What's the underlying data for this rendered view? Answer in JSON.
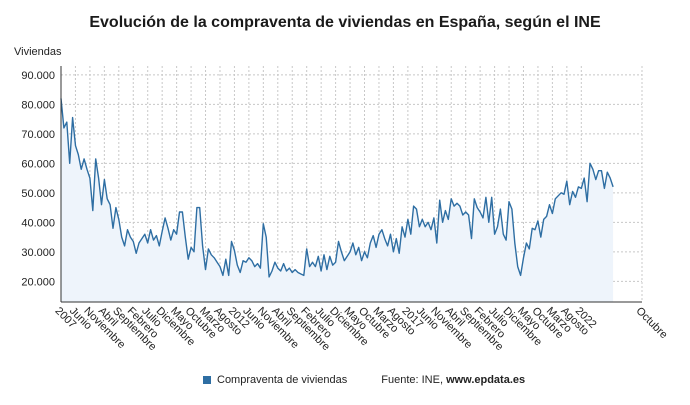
{
  "chart_data": {
    "type": "area",
    "title": "Evolución de la compraventa de viviendas en España, según el INE",
    "ylabel": "Viviendas",
    "ylim": [
      13000,
      93000
    ],
    "yticks": [
      20000,
      30000,
      40000,
      50000,
      60000,
      70000,
      80000,
      90000
    ],
    "ytick_labels": [
      "20.000",
      "30.000",
      "40.000",
      "50.000",
      "60.000",
      "70.000",
      "80.000",
      "90.000"
    ],
    "x_start": "2007-01",
    "x_end": "2023-10",
    "xtick_labels": [
      {
        "date": "2007-01",
        "label": "2007"
      },
      {
        "date": "2007-06",
        "label": "Junio"
      },
      {
        "date": "2007-11",
        "label": "Noviembre"
      },
      {
        "date": "2008-04",
        "label": "Abril"
      },
      {
        "date": "2008-09",
        "label": "Septiembre"
      },
      {
        "date": "2009-02",
        "label": "Febrero"
      },
      {
        "date": "2009-07",
        "label": "Julio"
      },
      {
        "date": "2009-12",
        "label": "Diciembre"
      },
      {
        "date": "2010-05",
        "label": "Mayo"
      },
      {
        "date": "2010-10",
        "label": "Octubre"
      },
      {
        "date": "2011-03",
        "label": "Marzo"
      },
      {
        "date": "2011-08",
        "label": "Agosto"
      },
      {
        "date": "2012-01",
        "label": "2012"
      },
      {
        "date": "2012-06",
        "label": "Junio"
      },
      {
        "date": "2012-11",
        "label": "Noviembre"
      },
      {
        "date": "2013-04",
        "label": "Abril"
      },
      {
        "date": "2013-09",
        "label": "Septiembre"
      },
      {
        "date": "2014-02",
        "label": "Febrero"
      },
      {
        "date": "2014-07",
        "label": "Julio"
      },
      {
        "date": "2014-12",
        "label": "Diciembre"
      },
      {
        "date": "2015-05",
        "label": "Mayo"
      },
      {
        "date": "2015-10",
        "label": "Octubre"
      },
      {
        "date": "2016-03",
        "label": "Marzo"
      },
      {
        "date": "2016-08",
        "label": "Agosto"
      },
      {
        "date": "2017-01",
        "label": "2017"
      },
      {
        "date": "2017-06",
        "label": "Junio"
      },
      {
        "date": "2017-11",
        "label": "Noviembre"
      },
      {
        "date": "2018-04",
        "label": "Abril"
      },
      {
        "date": "2018-09",
        "label": "Septiembre"
      },
      {
        "date": "2019-02",
        "label": "Febrero"
      },
      {
        "date": "2019-07",
        "label": "Julio"
      },
      {
        "date": "2019-12",
        "label": "Diciembre"
      },
      {
        "date": "2020-05",
        "label": "Mayo"
      },
      {
        "date": "2020-10",
        "label": "Octubre"
      },
      {
        "date": "2021-03",
        "label": "Marzo"
      },
      {
        "date": "2021-08",
        "label": "Agosto"
      },
      {
        "date": "2022-01",
        "label": "2022"
      },
      {
        "date": "2023-10",
        "label": "Octubre"
      }
    ],
    "series": [
      {
        "name": "Compraventa de viviendas",
        "color": "#2e6ea3",
        "fill": "#eef4fb",
        "values": [
          82000,
          72000,
          74000,
          60000,
          75500,
          66000,
          63000,
          58000,
          61500,
          58000,
          55000,
          44000,
          61500,
          55000,
          46000,
          54500,
          48000,
          46000,
          38000,
          45000,
          41000,
          35000,
          32000,
          37500,
          35000,
          33500,
          29500,
          33000,
          34500,
          36000,
          33000,
          37500,
          34000,
          35500,
          32000,
          37000,
          41500,
          38000,
          34000,
          37500,
          36000,
          43500,
          43500,
          35000,
          27500,
          31500,
          30000,
          45000,
          45000,
          32000,
          24000,
          31000,
          29000,
          28000,
          26500,
          25000,
          22000,
          27500,
          22000,
          33500,
          30500,
          25500,
          23000,
          27000,
          26500,
          28000,
          27000,
          25000,
          26000,
          24500,
          39500,
          35000,
          21500,
          23500,
          26500,
          24500,
          23500,
          26000,
          23500,
          24500,
          23000,
          24000,
          23000,
          22500,
          22000,
          31000,
          25000,
          26500,
          25000,
          28500,
          23500,
          29000,
          24000,
          28500,
          25500,
          26500,
          33500,
          30000,
          27000,
          28500,
          30000,
          33000,
          29000,
          31500,
          27000,
          30000,
          28000,
          33000,
          35500,
          31500,
          36000,
          37500,
          34500,
          32000,
          36000,
          30000,
          34500,
          29500,
          38500,
          35000,
          41000,
          36000,
          45500,
          44500,
          38500,
          41000,
          38500,
          40000,
          37500,
          41500,
          33000,
          47500,
          40000,
          44000,
          41000,
          48000,
          45500,
          46500,
          45500,
          42500,
          43500,
          42500,
          34500,
          48000,
          45000,
          43500,
          41500,
          48500,
          40000,
          48500,
          36000,
          38500,
          44500,
          36000,
          34000,
          47000,
          44500,
          33000,
          25000,
          22000,
          28000,
          33000,
          31000,
          38000,
          37500,
          40500,
          35000,
          41000,
          42000,
          46000,
          43000,
          48000,
          49000,
          50000,
          49500,
          54000,
          46000,
          50500,
          48500,
          52000,
          51500,
          55000,
          47000,
          60000,
          58000,
          54500,
          57500,
          57500,
          51500,
          57000,
          55000,
          52000
        ]
      }
    ],
    "legend": "bottom",
    "grid": true
  },
  "legend": {
    "series_label": "Compraventa de viviendas",
    "source_prefix": "Fuente: INE, ",
    "source_site": "www.epdata.es"
  }
}
